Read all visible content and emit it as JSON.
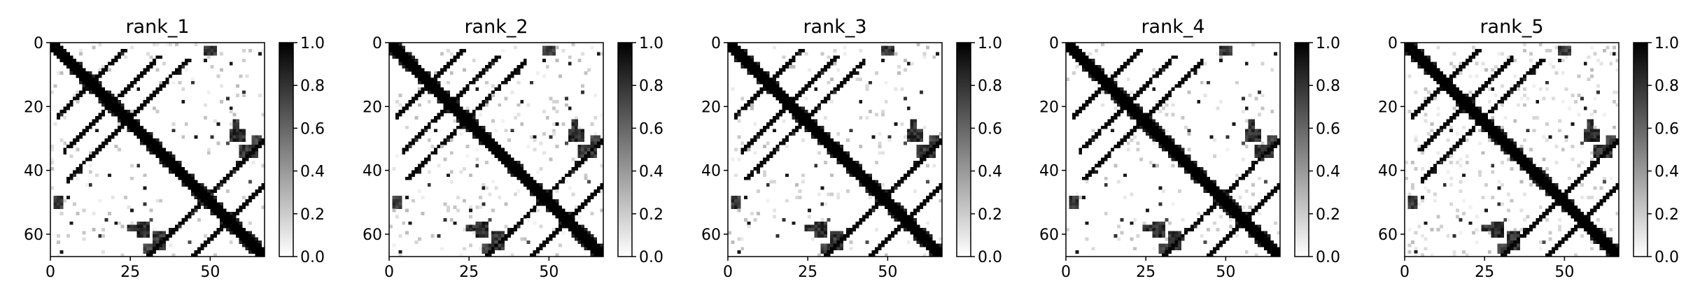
{
  "chart_data": [
    {
      "type": "heatmap",
      "title": "rank_1",
      "matrix_size": 67,
      "colormap": "Greys",
      "value_range": [
        0,
        1
      ],
      "x_ticks": [
        0,
        25,
        50
      ],
      "y_ticks": [
        0,
        20,
        40,
        60
      ],
      "colorbar_ticks": [
        "0.0",
        "0.2",
        "0.4",
        "0.6",
        "0.8",
        "1.0"
      ],
      "contact_pattern": {
        "diagonal": true,
        "anti_diagonal_bands": [
          {
            "i_from": 2,
            "i_to": 20,
            "sum": 24
          },
          {
            "i_from": 4,
            "i_to": 20,
            "sum": 37
          },
          {
            "i_from": 5,
            "i_to": 22,
            "sum": 47
          },
          {
            "i_from": 42,
            "i_to": 66,
            "sum": 110
          },
          {
            "i_from": 48,
            "i_to": 66,
            "sum": 96
          }
        ],
        "blocks": [
          {
            "rows": [
              1,
              3
            ],
            "cols": [
              48,
              51
            ],
            "v": 0.9
          },
          {
            "rows": [
              56,
              60
            ],
            "cols": [
              27,
              30
            ],
            "v": 0.95
          },
          {
            "rows": [
              59,
              64
            ],
            "cols": [
              32,
              35
            ],
            "v": 0.9
          },
          {
            "rows": [
              24,
              26
            ],
            "cols": [
              57,
              58
            ],
            "v": 0.9
          },
          {
            "rows": [
              29,
              31
            ],
            "cols": [
              63,
              65
            ],
            "v": 0.85
          }
        ],
        "spots": [
          [
            9,
            40,
            0.9
          ],
          [
            18,
            41,
            0.9
          ],
          [
            22,
            22,
            1
          ],
          [
            12,
            44,
            0.8
          ],
          [
            20,
            56,
            0.9
          ],
          [
            27,
            10,
            0.9
          ],
          [
            27,
            14,
            0.9
          ],
          [
            29,
            45,
            0.9
          ],
          [
            29,
            50,
            0.8
          ],
          [
            31,
            55,
            0.7
          ],
          [
            48,
            5,
            0.9
          ],
          [
            52,
            25,
            0.9
          ],
          [
            55,
            17,
            0.8
          ],
          [
            58,
            37,
            0.9
          ],
          [
            62,
            43,
            0.7
          ],
          [
            65,
            3,
            0.9
          ],
          [
            38,
            27,
            0.8
          ],
          [
            6,
            56,
            0.9
          ],
          [
            15,
            60,
            0.8
          ],
          [
            35,
            62,
            0.7
          ]
        ],
        "faint_noise": 0.035,
        "seed": 11
      }
    },
    {
      "type": "heatmap",
      "title": "rank_2",
      "matrix_size": 67,
      "colormap": "Greys",
      "value_range": [
        0,
        1
      ],
      "x_ticks": [
        0,
        25,
        50
      ],
      "y_ticks": [
        0,
        20,
        40,
        60
      ],
      "colorbar_ticks": [
        "0.0",
        "0.2",
        "0.4",
        "0.6",
        "0.8",
        "1.0"
      ],
      "contact_pattern": {
        "diagonal": true,
        "anti_diagonal_bands": [
          {
            "i_from": 2,
            "i_to": 20,
            "sum": 24
          },
          {
            "i_from": 4,
            "i_to": 20,
            "sum": 37
          },
          {
            "i_from": 5,
            "i_to": 22,
            "sum": 47
          },
          {
            "i_from": 42,
            "i_to": 66,
            "sum": 110
          },
          {
            "i_from": 48,
            "i_to": 66,
            "sum": 96
          }
        ],
        "blocks": [
          {
            "rows": [
              1,
              3
            ],
            "cols": [
              48,
              51
            ],
            "v": 0.9
          },
          {
            "rows": [
              56,
              60
            ],
            "cols": [
              27,
              30
            ],
            "v": 0.95
          },
          {
            "rows": [
              59,
              64
            ],
            "cols": [
              32,
              35
            ],
            "v": 0.9
          },
          {
            "rows": [
              24,
              26
            ],
            "cols": [
              57,
              58
            ],
            "v": 0.9
          },
          {
            "rows": [
              29,
              31
            ],
            "cols": [
              63,
              65
            ],
            "v": 0.85
          }
        ],
        "spots": [
          [
            9,
            40,
            0.9
          ],
          [
            18,
            41,
            0.9
          ],
          [
            22,
            22,
            1
          ],
          [
            12,
            44,
            0.8
          ],
          [
            20,
            56,
            0.9
          ],
          [
            27,
            10,
            0.9
          ],
          [
            27,
            14,
            0.9
          ],
          [
            29,
            45,
            0.9
          ],
          [
            29,
            50,
            0.8
          ],
          [
            31,
            55,
            0.7
          ],
          [
            48,
            5,
            0.9
          ],
          [
            52,
            25,
            0.9
          ],
          [
            55,
            17,
            0.8
          ],
          [
            58,
            37,
            0.9
          ],
          [
            62,
            43,
            0.7
          ],
          [
            65,
            3,
            0.9
          ],
          [
            38,
            27,
            0.8
          ],
          [
            6,
            56,
            0.9
          ],
          [
            15,
            60,
            0.8
          ],
          [
            35,
            62,
            0.7
          ]
        ],
        "faint_noise": 0.035,
        "seed": 23
      }
    },
    {
      "type": "heatmap",
      "title": "rank_3",
      "matrix_size": 67,
      "colormap": "Greys",
      "value_range": [
        0,
        1
      ],
      "x_ticks": [
        0,
        25,
        50
      ],
      "y_ticks": [
        0,
        20,
        40,
        60
      ],
      "colorbar_ticks": [
        "0.0",
        "0.2",
        "0.4",
        "0.6",
        "0.8",
        "1.0"
      ],
      "contact_pattern": {
        "diagonal": true,
        "anti_diagonal_bands": [
          {
            "i_from": 2,
            "i_to": 20,
            "sum": 24
          },
          {
            "i_from": 4,
            "i_to": 20,
            "sum": 37
          },
          {
            "i_from": 5,
            "i_to": 22,
            "sum": 47
          },
          {
            "i_from": 42,
            "i_to": 66,
            "sum": 110
          },
          {
            "i_from": 48,
            "i_to": 66,
            "sum": 96
          }
        ],
        "blocks": [
          {
            "rows": [
              1,
              3
            ],
            "cols": [
              48,
              51
            ],
            "v": 0.9
          },
          {
            "rows": [
              56,
              60
            ],
            "cols": [
              27,
              30
            ],
            "v": 0.95
          },
          {
            "rows": [
              59,
              64
            ],
            "cols": [
              32,
              35
            ],
            "v": 0.9
          },
          {
            "rows": [
              24,
              26
            ],
            "cols": [
              57,
              58
            ],
            "v": 0.9
          },
          {
            "rows": [
              29,
              31
            ],
            "cols": [
              63,
              65
            ],
            "v": 0.85
          }
        ],
        "spots": [
          [
            9,
            40,
            0.9
          ],
          [
            18,
            41,
            0.9
          ],
          [
            22,
            22,
            1
          ],
          [
            12,
            44,
            0.8
          ],
          [
            20,
            56,
            0.9
          ],
          [
            27,
            10,
            0.9
          ],
          [
            27,
            14,
            0.9
          ],
          [
            29,
            45,
            0.9
          ],
          [
            29,
            50,
            0.8
          ],
          [
            31,
            55,
            0.7
          ],
          [
            48,
            5,
            0.9
          ],
          [
            52,
            25,
            0.9
          ],
          [
            55,
            17,
            0.8
          ],
          [
            58,
            37,
            0.9
          ],
          [
            62,
            43,
            0.7
          ],
          [
            65,
            3,
            0.9
          ],
          [
            38,
            27,
            0.8
          ],
          [
            6,
            56,
            0.9
          ],
          [
            15,
            60,
            0.8
          ],
          [
            35,
            62,
            0.7
          ]
        ],
        "faint_noise": 0.035,
        "seed": 37
      }
    },
    {
      "type": "heatmap",
      "title": "rank_4",
      "matrix_size": 67,
      "colormap": "Greys",
      "value_range": [
        0,
        1
      ],
      "x_ticks": [
        0,
        25,
        50
      ],
      "y_ticks": [
        0,
        20,
        40,
        60
      ],
      "colorbar_ticks": [
        "0.0",
        "0.2",
        "0.4",
        "0.6",
        "0.8",
        "1.0"
      ],
      "contact_pattern": {
        "diagonal": true,
        "anti_diagonal_bands": [
          {
            "i_from": 2,
            "i_to": 20,
            "sum": 24
          },
          {
            "i_from": 4,
            "i_to": 20,
            "sum": 37
          },
          {
            "i_from": 5,
            "i_to": 22,
            "sum": 47
          },
          {
            "i_from": 42,
            "i_to": 66,
            "sum": 110
          },
          {
            "i_from": 48,
            "i_to": 66,
            "sum": 96
          }
        ],
        "blocks": [
          {
            "rows": [
              1,
              3
            ],
            "cols": [
              48,
              51
            ],
            "v": 0.9
          },
          {
            "rows": [
              56,
              60
            ],
            "cols": [
              27,
              30
            ],
            "v": 0.95
          },
          {
            "rows": [
              59,
              64
            ],
            "cols": [
              32,
              35
            ],
            "v": 0.9
          },
          {
            "rows": [
              24,
              26
            ],
            "cols": [
              57,
              58
            ],
            "v": 0.9
          },
          {
            "rows": [
              29,
              31
            ],
            "cols": [
              63,
              65
            ],
            "v": 0.85
          }
        ],
        "spots": [
          [
            9,
            40,
            0.9
          ],
          [
            18,
            41,
            0.9
          ],
          [
            22,
            22,
            1
          ],
          [
            12,
            44,
            0.8
          ],
          [
            20,
            56,
            0.9
          ],
          [
            27,
            10,
            0.9
          ],
          [
            27,
            14,
            0.9
          ],
          [
            29,
            45,
            0.9
          ],
          [
            29,
            50,
            0.8
          ],
          [
            31,
            55,
            0.7
          ],
          [
            48,
            5,
            0.9
          ],
          [
            52,
            25,
            0.9
          ],
          [
            55,
            17,
            0.8
          ],
          [
            58,
            37,
            0.9
          ],
          [
            62,
            43,
            0.7
          ],
          [
            65,
            3,
            0.9
          ],
          [
            38,
            27,
            0.8
          ],
          [
            6,
            56,
            0.9
          ],
          [
            15,
            60,
            0.8
          ],
          [
            35,
            62,
            0.7
          ]
        ],
        "faint_noise": 0.035,
        "seed": 41
      }
    },
    {
      "type": "heatmap",
      "title": "rank_5",
      "matrix_size": 67,
      "colormap": "Greys",
      "value_range": [
        0,
        1
      ],
      "x_ticks": [
        0,
        25,
        50
      ],
      "y_ticks": [
        0,
        20,
        40,
        60
      ],
      "colorbar_ticks": [
        "0.0",
        "0.2",
        "0.4",
        "0.6",
        "0.8",
        "1.0"
      ],
      "contact_pattern": {
        "diagonal": true,
        "anti_diagonal_bands": [
          {
            "i_from": 2,
            "i_to": 20,
            "sum": 24
          },
          {
            "i_from": 4,
            "i_to": 20,
            "sum": 37
          },
          {
            "i_from": 5,
            "i_to": 22,
            "sum": 47
          },
          {
            "i_from": 42,
            "i_to": 66,
            "sum": 110
          },
          {
            "i_from": 48,
            "i_to": 66,
            "sum": 96
          }
        ],
        "blocks": [
          {
            "rows": [
              1,
              3
            ],
            "cols": [
              48,
              51
            ],
            "v": 0.9
          },
          {
            "rows": [
              56,
              60
            ],
            "cols": [
              27,
              30
            ],
            "v": 0.95
          },
          {
            "rows": [
              59,
              64
            ],
            "cols": [
              32,
              35
            ],
            "v": 0.9
          },
          {
            "rows": [
              24,
              26
            ],
            "cols": [
              57,
              58
            ],
            "v": 0.9
          },
          {
            "rows": [
              29,
              31
            ],
            "cols": [
              63,
              65
            ],
            "v": 0.85
          }
        ],
        "spots": [
          [
            9,
            40,
            0.9
          ],
          [
            18,
            41,
            0.9
          ],
          [
            22,
            22,
            1
          ],
          [
            12,
            44,
            0.8
          ],
          [
            20,
            56,
            0.9
          ],
          [
            27,
            10,
            0.9
          ],
          [
            27,
            14,
            0.9
          ],
          [
            29,
            45,
            0.9
          ],
          [
            29,
            50,
            0.8
          ],
          [
            31,
            55,
            0.7
          ],
          [
            48,
            5,
            0.9
          ],
          [
            52,
            25,
            0.9
          ],
          [
            55,
            17,
            0.8
          ],
          [
            58,
            37,
            0.9
          ],
          [
            62,
            43,
            0.7
          ],
          [
            65,
            3,
            0.9
          ],
          [
            38,
            27,
            0.8
          ],
          [
            6,
            56,
            0.9
          ],
          [
            15,
            60,
            0.8
          ],
          [
            35,
            62,
            0.7
          ]
        ],
        "faint_noise": 0.06,
        "seed": 53
      }
    }
  ]
}
